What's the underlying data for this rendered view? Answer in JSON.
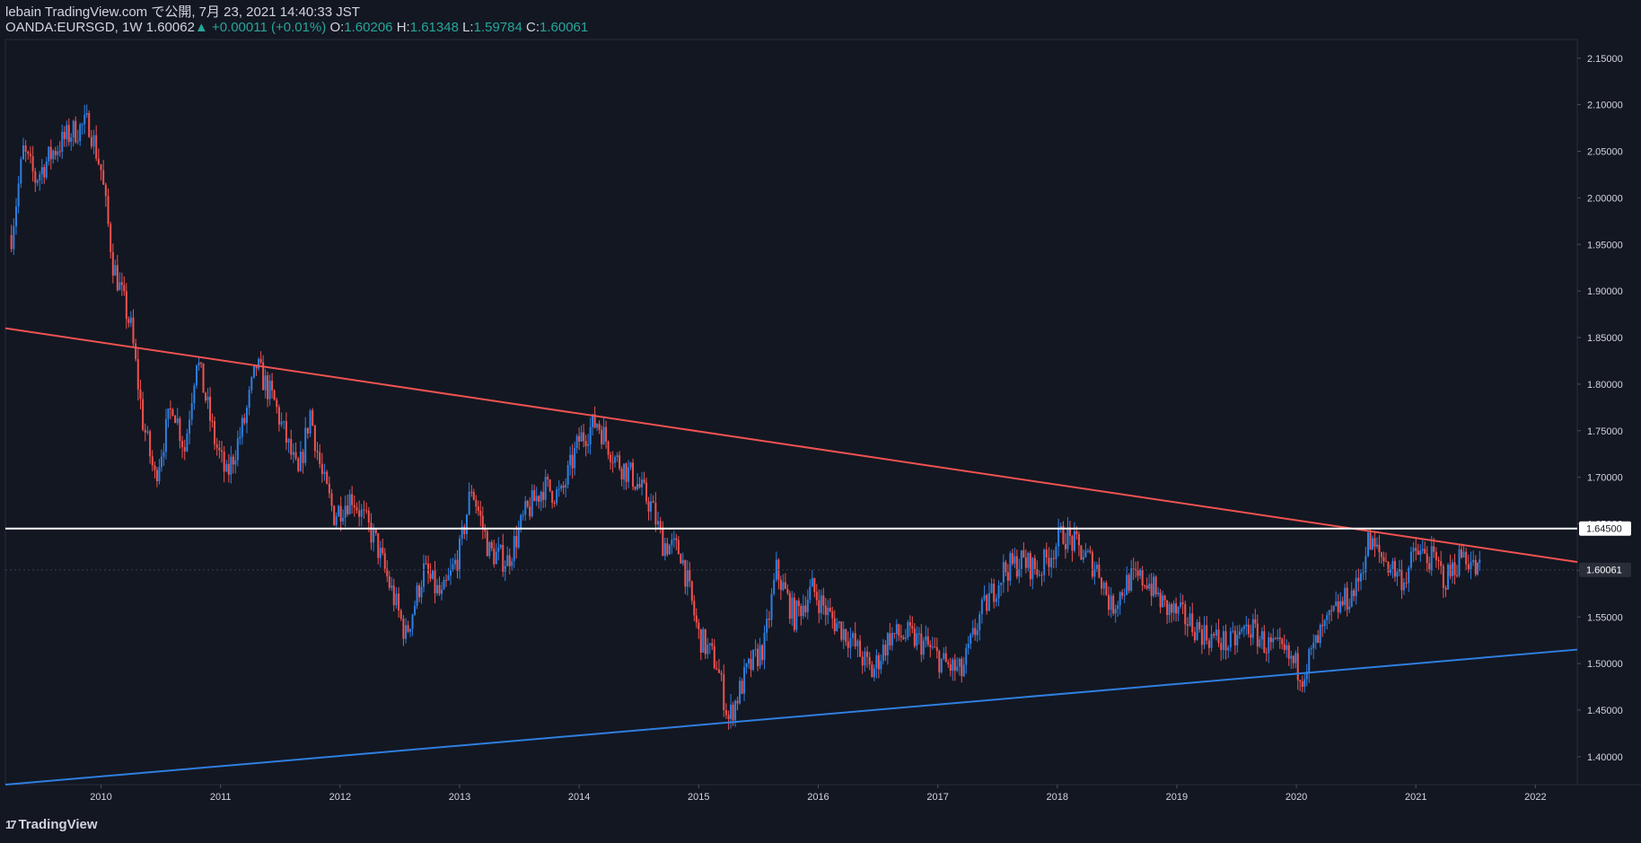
{
  "header": {
    "publish_line": "lebain TradingView.com で公開, 7月 23, 2021 14:40:33 JST",
    "symbol_line": "OANDA:EURSGD, 1W 1.60062",
    "change": "▲ +0.00011 (+0.01%)",
    "o_label": "O:",
    "o_value": "1.60206",
    "h_label": "H:",
    "h_value": "1.61348",
    "l_label": "L:",
    "l_value": "1.59784",
    "c_label": "C:",
    "c_value": "1.60061"
  },
  "footer": {
    "logo_text": "TradingView",
    "logo_mark": "17"
  },
  "colors": {
    "background": "#131722",
    "up": "#2f7fe0",
    "down": "#ef5350",
    "resistance": "#ef5350",
    "support": "#2f7fe0",
    "horizontal": "#ffffff",
    "axis_text": "#d1d4dc",
    "ohlc_value": "#26a69a"
  },
  "chart_data": {
    "type": "candlestick",
    "symbol": "OANDA:EURSGD",
    "interval": "1W",
    "xlabel": "",
    "ylabel": "",
    "x_ticks": [
      "2010",
      "2011",
      "2012",
      "2013",
      "2014",
      "2015",
      "2016",
      "2017",
      "2018",
      "2019",
      "2020",
      "2021",
      "2022"
    ],
    "y_ticks": [
      "1.40000",
      "1.45000",
      "1.50000",
      "1.55000",
      "1.60000",
      "1.65000",
      "1.70000",
      "1.75000",
      "1.80000",
      "1.85000",
      "1.90000",
      "1.95000",
      "2.00000",
      "2.05000",
      "2.10000",
      "2.15000"
    ],
    "ylim": [
      1.37,
      2.17
    ],
    "xlim": [
      2009.2,
      2022.35
    ],
    "price_path": [
      [
        2009.25,
        1.96
      ],
      [
        2009.35,
        2.05
      ],
      [
        2009.45,
        2.02
      ],
      [
        2009.6,
        2.05
      ],
      [
        2009.75,
        2.07
      ],
      [
        2009.9,
        2.08
      ],
      [
        2010.0,
        2.03
      ],
      [
        2010.1,
        1.93
      ],
      [
        2010.25,
        1.86
      ],
      [
        2010.35,
        1.76
      ],
      [
        2010.45,
        1.7
      ],
      [
        2010.6,
        1.78
      ],
      [
        2010.7,
        1.73
      ],
      [
        2010.8,
        1.83
      ],
      [
        2010.95,
        1.74
      ],
      [
        2011.05,
        1.7
      ],
      [
        2011.2,
        1.76
      ],
      [
        2011.3,
        1.82
      ],
      [
        2011.45,
        1.78
      ],
      [
        2011.55,
        1.74
      ],
      [
        2011.65,
        1.7
      ],
      [
        2011.75,
        1.77
      ],
      [
        2011.85,
        1.7
      ],
      [
        2011.95,
        1.66
      ],
      [
        2012.1,
        1.68
      ],
      [
        2012.3,
        1.63
      ],
      [
        2012.45,
        1.57
      ],
      [
        2012.55,
        1.53
      ],
      [
        2012.7,
        1.6
      ],
      [
        2012.85,
        1.57
      ],
      [
        2013.0,
        1.62
      ],
      [
        2013.1,
        1.69
      ],
      [
        2013.25,
        1.62
      ],
      [
        2013.4,
        1.61
      ],
      [
        2013.55,
        1.66
      ],
      [
        2013.7,
        1.69
      ],
      [
        2013.85,
        1.68
      ],
      [
        2014.0,
        1.74
      ],
      [
        2014.15,
        1.76
      ],
      [
        2014.3,
        1.72
      ],
      [
        2014.45,
        1.7
      ],
      [
        2014.6,
        1.67
      ],
      [
        2014.7,
        1.63
      ],
      [
        2014.85,
        1.62
      ],
      [
        2015.0,
        1.53
      ],
      [
        2015.15,
        1.5
      ],
      [
        2015.25,
        1.44
      ],
      [
        2015.4,
        1.49
      ],
      [
        2015.55,
        1.52
      ],
      [
        2015.65,
        1.6
      ],
      [
        2015.8,
        1.55
      ],
      [
        2015.95,
        1.58
      ],
      [
        2016.1,
        1.55
      ],
      [
        2016.25,
        1.53
      ],
      [
        2016.45,
        1.49
      ],
      [
        2016.6,
        1.53
      ],
      [
        2016.75,
        1.53
      ],
      [
        2016.9,
        1.52
      ],
      [
        2017.05,
        1.5
      ],
      [
        2017.2,
        1.49
      ],
      [
        2017.35,
        1.55
      ],
      [
        2017.55,
        1.6
      ],
      [
        2017.7,
        1.61
      ],
      [
        2017.85,
        1.6
      ],
      [
        2018.05,
        1.64
      ],
      [
        2018.2,
        1.62
      ],
      [
        2018.35,
        1.6
      ],
      [
        2018.45,
        1.56
      ],
      [
        2018.6,
        1.59
      ],
      [
        2018.75,
        1.59
      ],
      [
        2018.9,
        1.56
      ],
      [
        2019.05,
        1.55
      ],
      [
        2019.25,
        1.53
      ],
      [
        2019.45,
        1.52
      ],
      [
        2019.6,
        1.54
      ],
      [
        2019.75,
        1.52
      ],
      [
        2019.9,
        1.51
      ],
      [
        2020.05,
        1.49
      ],
      [
        2020.2,
        1.53
      ],
      [
        2020.35,
        1.56
      ],
      [
        2020.5,
        1.58
      ],
      [
        2020.6,
        1.63
      ],
      [
        2020.75,
        1.61
      ],
      [
        2020.9,
        1.59
      ],
      [
        2021.0,
        1.62
      ],
      [
        2021.15,
        1.61
      ],
      [
        2021.25,
        1.59
      ],
      [
        2021.4,
        1.62
      ],
      [
        2021.5,
        1.6
      ],
      [
        2021.55,
        1.6
      ]
    ],
    "trendlines": [
      {
        "name": "resistance",
        "x": [
          2009.2,
          2022.35
        ],
        "y": [
          1.86,
          1.609
        ]
      },
      {
        "name": "support",
        "x": [
          2009.2,
          2022.35
        ],
        "y": [
          1.37,
          1.515
        ]
      }
    ],
    "horizontal_lines": [
      {
        "price": 1.645,
        "label": "1.64500"
      }
    ],
    "last_price": {
      "price": 1.60061,
      "label": "1.60061"
    },
    "grid": false
  }
}
